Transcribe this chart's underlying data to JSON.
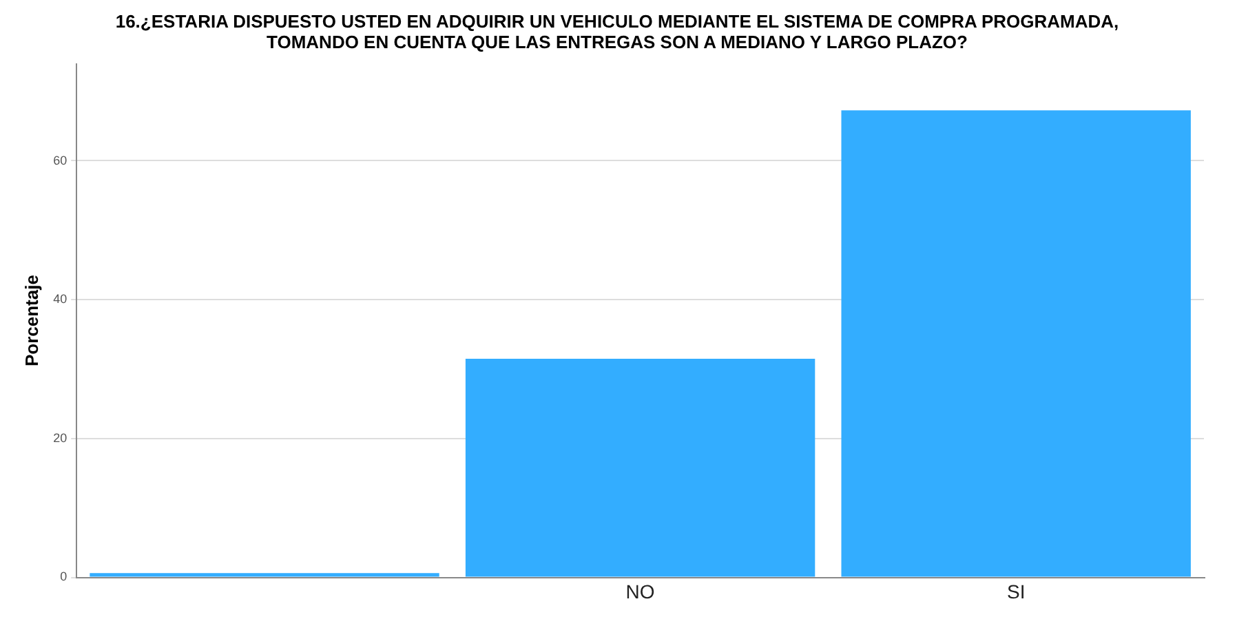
{
  "chart_data": {
    "type": "bar",
    "title": "16.¿ESTARIA DISPUESTO USTED EN ADQUIRIR UN VEHICULO MEDIANTE EL SISTEMA DE COMPRA PROGRAMADA, TOMANDO EN CUENTA QUE LAS ENTREGAS SON A MEDIANO Y LARGO PLAZO?",
    "ylabel": "Porcentaje",
    "categories": [
      null,
      "NO",
      "SI"
    ],
    "values": [
      0.6,
      31.5,
      67.3
    ],
    "color": "#33adff",
    "ylim": [
      0,
      74
    ],
    "yticks": [
      0,
      20,
      40,
      60
    ],
    "grid": "y"
  }
}
